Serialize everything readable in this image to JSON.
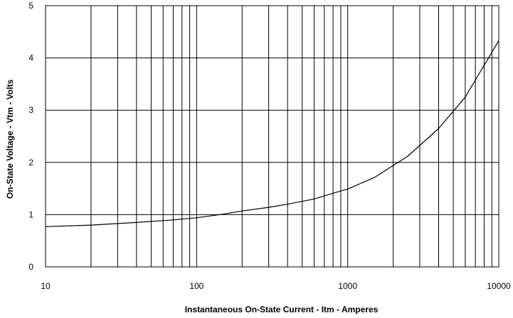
{
  "chart_data": {
    "type": "line",
    "title": "",
    "xlabel": "Instantaneous On-State Current - Itm - Amperes",
    "ylabel": "On-State Voltage - Vtm - Volts",
    "x_scale": "log",
    "xlim": [
      10,
      10000
    ],
    "ylim": [
      0,
      5
    ],
    "x_ticks": [
      "10",
      "100",
      "1000",
      "10000"
    ],
    "y_ticks": [
      "0",
      "1",
      "2",
      "3",
      "4",
      "5"
    ],
    "grid": true,
    "legend": "none",
    "line_color": "#000000",
    "series": [
      {
        "x": [
          10,
          20,
          40,
          70,
          100,
          150,
          200,
          300,
          400,
          600,
          800,
          1000,
          1500,
          2500,
          4000,
          6000,
          10000
        ],
        "y": [
          0.77,
          0.8,
          0.85,
          0.9,
          0.94,
          1.01,
          1.07,
          1.14,
          1.2,
          1.3,
          1.41,
          1.49,
          1.71,
          2.12,
          2.65,
          3.25,
          4.33
        ]
      }
    ]
  }
}
